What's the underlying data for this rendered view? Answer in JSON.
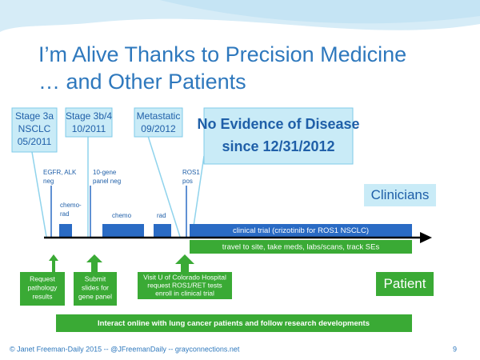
{
  "title": {
    "line1": "I’m Alive Thanks to Precision Medicine",
    "line2": "… and Other Patients"
  },
  "stages": [
    {
      "lines": [
        "Stage 3a",
        "NSCLC",
        "05/2011"
      ]
    },
    {
      "lines": [
        "Stage 3b/4",
        "10/2011"
      ]
    },
    {
      "lines": [
        "Metastatic",
        "09/2012"
      ]
    }
  ],
  "ned": {
    "lines": [
      "No Evidence of Disease",
      "since 12/31/2012"
    ]
  },
  "events": [
    {
      "lines": [
        "EGFR, ALK",
        "neg"
      ]
    },
    {
      "lines": [
        "chemo-",
        "rad"
      ]
    },
    {
      "lines": [
        "10-gene",
        "panel neg"
      ]
    },
    {
      "lines": [
        "chemo"
      ]
    },
    {
      "lines": [
        "rad"
      ]
    },
    {
      "lines": [
        "ROS1",
        "pos"
      ]
    }
  ],
  "clinicians": "Clinicians",
  "patient": "Patient",
  "clinical_trial": "clinical trial (crizotinib for ROS1 NSCLC)",
  "patient_bar": "travel to site, take meds, labs/scans, track SEs",
  "patient_actions": [
    {
      "lines": [
        "Request",
        "pathology",
        "results"
      ]
    },
    {
      "lines": [
        "Submit",
        "slides for",
        "gene panel"
      ]
    },
    {
      "lines": [
        "Visit U of Colorado Hospital",
        "request  ROS1/RET tests",
        "enroll in clinical trial"
      ]
    }
  ],
  "online": "Interact online with lung cancer patients and follow research developments",
  "footer": "© Janet Freeman-Daily  2015 -- @JFreemanDaily --  grayconnections.net",
  "page_number": "9"
}
